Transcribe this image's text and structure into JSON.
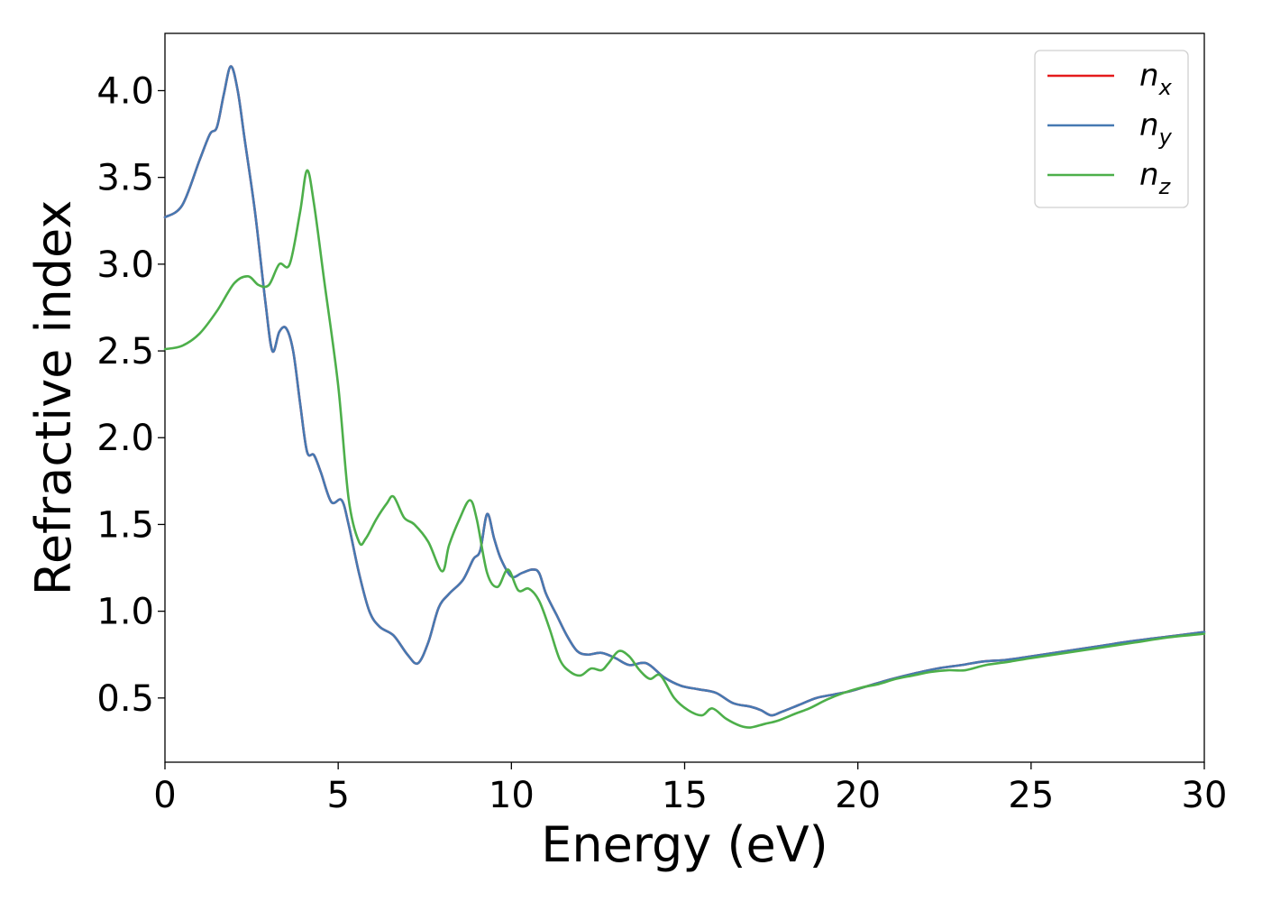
{
  "chart_data": {
    "type": "line",
    "title": "",
    "xlabel": "Energy (eV)",
    "ylabel": "Refractive index",
    "xlim": [
      0,
      30
    ],
    "ylim": [
      0.13,
      4.33
    ],
    "xticks": [
      0,
      5,
      10,
      15,
      20,
      25,
      30
    ],
    "yticks": [
      0.5,
      1.0,
      1.5,
      2.0,
      2.5,
      3.0,
      3.5,
      4.0
    ],
    "xtick_labels": [
      "0",
      "5",
      "10",
      "15",
      "20",
      "25",
      "30"
    ],
    "ytick_labels": [
      "0.5",
      "1.0",
      "1.5",
      "2.0",
      "2.5",
      "3.0",
      "3.5",
      "4.0"
    ],
    "grid": false,
    "legend_position": "top-right",
    "series": [
      {
        "name": "n",
        "subscript": "x",
        "color": "#e41a1c",
        "x": [
          0,
          0.5,
          1.0,
          1.3,
          1.5,
          1.7,
          1.9,
          2.1,
          2.3,
          2.6,
          2.9,
          3.1,
          3.3,
          3.5,
          3.7,
          3.9,
          4.1,
          4.3,
          4.5,
          4.8,
          5.1,
          5.3,
          5.6,
          5.9,
          6.2,
          6.6,
          7.0,
          7.3,
          7.6,
          7.9,
          8.2,
          8.6,
          8.9,
          9.1,
          9.3,
          9.5,
          9.7,
          10.0,
          10.3,
          10.6,
          10.8,
          11.0,
          11.3,
          11.6,
          11.9,
          12.2,
          12.6,
          13.0,
          13.4,
          13.9,
          14.4,
          14.9,
          15.4,
          15.9,
          16.4,
          16.9,
          17.2,
          17.5,
          17.8,
          18.3,
          18.8,
          19.3,
          19.8,
          20.3,
          21.0,
          21.6,
          22.3,
          23.0,
          23.6,
          24.3,
          25.0,
          26.0,
          27.0,
          28.0,
          29.0,
          30.0
        ],
        "y": [
          3.27,
          3.34,
          3.6,
          3.75,
          3.79,
          3.98,
          4.14,
          4.0,
          3.72,
          3.3,
          2.78,
          2.5,
          2.61,
          2.63,
          2.5,
          2.2,
          1.92,
          1.9,
          1.8,
          1.63,
          1.64,
          1.5,
          1.22,
          1.0,
          0.91,
          0.86,
          0.75,
          0.7,
          0.82,
          1.02,
          1.1,
          1.18,
          1.3,
          1.35,
          1.56,
          1.42,
          1.3,
          1.2,
          1.22,
          1.24,
          1.22,
          1.1,
          0.98,
          0.86,
          0.77,
          0.75,
          0.76,
          0.73,
          0.69,
          0.7,
          0.62,
          0.57,
          0.55,
          0.53,
          0.47,
          0.45,
          0.43,
          0.4,
          0.42,
          0.46,
          0.5,
          0.52,
          0.54,
          0.57,
          0.61,
          0.64,
          0.67,
          0.69,
          0.71,
          0.72,
          0.74,
          0.77,
          0.8,
          0.83,
          0.855,
          0.88
        ]
      },
      {
        "name": "n",
        "subscript": "y",
        "color": "#4679b2",
        "x": [
          0,
          0.5,
          1.0,
          1.3,
          1.5,
          1.7,
          1.9,
          2.1,
          2.3,
          2.6,
          2.9,
          3.1,
          3.3,
          3.5,
          3.7,
          3.9,
          4.1,
          4.3,
          4.5,
          4.8,
          5.1,
          5.3,
          5.6,
          5.9,
          6.2,
          6.6,
          7.0,
          7.3,
          7.6,
          7.9,
          8.2,
          8.6,
          8.9,
          9.1,
          9.3,
          9.5,
          9.7,
          10.0,
          10.3,
          10.6,
          10.8,
          11.0,
          11.3,
          11.6,
          11.9,
          12.2,
          12.6,
          13.0,
          13.4,
          13.9,
          14.4,
          14.9,
          15.4,
          15.9,
          16.4,
          16.9,
          17.2,
          17.5,
          17.8,
          18.3,
          18.8,
          19.3,
          19.8,
          20.3,
          21.0,
          21.6,
          22.3,
          23.0,
          23.6,
          24.3,
          25.0,
          26.0,
          27.0,
          28.0,
          29.0,
          30.0
        ],
        "y": [
          3.27,
          3.34,
          3.6,
          3.75,
          3.79,
          3.98,
          4.14,
          4.0,
          3.72,
          3.3,
          2.78,
          2.5,
          2.61,
          2.63,
          2.5,
          2.2,
          1.92,
          1.9,
          1.8,
          1.63,
          1.64,
          1.5,
          1.22,
          1.0,
          0.91,
          0.86,
          0.75,
          0.7,
          0.82,
          1.02,
          1.1,
          1.18,
          1.3,
          1.35,
          1.56,
          1.42,
          1.3,
          1.2,
          1.22,
          1.24,
          1.22,
          1.1,
          0.98,
          0.86,
          0.77,
          0.75,
          0.76,
          0.73,
          0.69,
          0.7,
          0.62,
          0.57,
          0.55,
          0.53,
          0.47,
          0.45,
          0.43,
          0.4,
          0.42,
          0.46,
          0.5,
          0.52,
          0.54,
          0.57,
          0.61,
          0.64,
          0.67,
          0.69,
          0.71,
          0.72,
          0.74,
          0.77,
          0.8,
          0.83,
          0.855,
          0.88
        ]
      },
      {
        "name": "n",
        "subscript": "z",
        "color": "#4daf4a",
        "x": [
          0,
          0.5,
          1.0,
          1.5,
          2.0,
          2.4,
          2.7,
          3.0,
          3.3,
          3.6,
          3.9,
          4.1,
          4.3,
          4.6,
          5.0,
          5.3,
          5.6,
          5.8,
          6.1,
          6.4,
          6.6,
          6.9,
          7.2,
          7.6,
          8.0,
          8.2,
          8.5,
          8.8,
          9.0,
          9.3,
          9.6,
          9.9,
          10.2,
          10.5,
          10.8,
          11.1,
          11.4,
          11.7,
          12.0,
          12.3,
          12.6,
          12.8,
          13.1,
          13.4,
          13.7,
          14.0,
          14.3,
          14.7,
          15.1,
          15.5,
          15.8,
          16.2,
          16.6,
          16.9,
          17.3,
          17.7,
          18.2,
          18.6,
          19.1,
          19.6,
          20.1,
          20.6,
          21.1,
          21.6,
          22.1,
          22.6,
          23.1,
          23.7,
          24.4,
          25.0,
          26.0,
          27.0,
          28.0,
          29.0,
          30.0
        ],
        "y": [
          2.51,
          2.53,
          2.6,
          2.73,
          2.89,
          2.93,
          2.88,
          2.88,
          3.0,
          3.0,
          3.3,
          3.54,
          3.35,
          2.9,
          2.3,
          1.65,
          1.4,
          1.42,
          1.53,
          1.62,
          1.66,
          1.54,
          1.5,
          1.4,
          1.23,
          1.38,
          1.53,
          1.64,
          1.53,
          1.22,
          1.14,
          1.24,
          1.12,
          1.13,
          1.06,
          0.9,
          0.72,
          0.65,
          0.63,
          0.67,
          0.66,
          0.7,
          0.77,
          0.74,
          0.66,
          0.61,
          0.63,
          0.5,
          0.43,
          0.4,
          0.44,
          0.38,
          0.34,
          0.33,
          0.35,
          0.37,
          0.41,
          0.44,
          0.49,
          0.53,
          0.56,
          0.58,
          0.61,
          0.63,
          0.65,
          0.66,
          0.66,
          0.69,
          0.71,
          0.73,
          0.76,
          0.79,
          0.82,
          0.85,
          0.87
        ]
      }
    ]
  }
}
